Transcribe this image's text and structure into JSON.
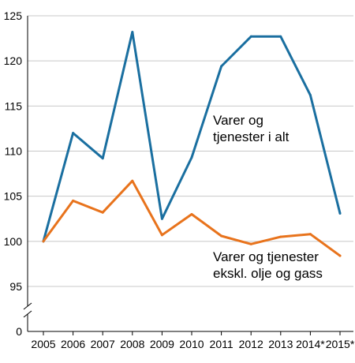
{
  "chart_data": {
    "type": "line",
    "categories": [
      "2005",
      "2006",
      "2007",
      "2008",
      "2009",
      "2010",
      "2011",
      "2012",
      "2013",
      "2014*",
      "2015*"
    ],
    "series": [
      {
        "name": "Varer og tjenester i alt",
        "color": "#1a6fa0",
        "values": [
          100,
          112,
          109.2,
          123.2,
          102.5,
          109.3,
          119.4,
          122.7,
          122.7,
          116.2,
          103.1
        ]
      },
      {
        "name": "Varer og tjenester eksk. olje og gass",
        "color": "#e8731c",
        "values": [
          100,
          104.5,
          103.2,
          106.7,
          100.7,
          103,
          100.6,
          99.7,
          100.5,
          100.8,
          98.4
        ]
      }
    ],
    "y_ticks": [
      "125",
      "120",
      "115",
      "110",
      "105",
      "100",
      "95",
      "0"
    ],
    "ylim": [
      95,
      125
    ],
    "axis_break": true,
    "grid": true,
    "annotations": {
      "series1_line1": "Varer og",
      "series1_line2": "tjenester i alt",
      "series2_line1": "Varer og tjenester",
      "series2_line2": "ekskl. olje og gass"
    }
  }
}
